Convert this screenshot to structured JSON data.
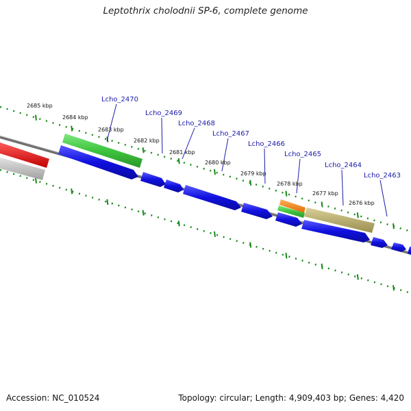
{
  "title": "Leptothrix cholodnii SP-6, complete genome",
  "accession": "Accession: NC_010524",
  "topology": "Topology: circular; Length: 4,909,403 bp; Genes: 4,420",
  "colors": {
    "backbone": "#6e6e6e",
    "cds": "#1010e0",
    "green_feature": "#3ec43e",
    "orange_feature": "#f07f10",
    "olive_feature": "#b8ac6a",
    "red_feature": "#f01010",
    "grey_feature": "#b8b8b8",
    "ticks": "#1a8a1a",
    "gene_label": "#1a1aa8"
  },
  "kbp_labels": [
    "2685 kbp",
    "2684 kbp",
    "2683 kbp",
    "2682 kbp",
    "2681 kbp",
    "2680 kbp",
    "2679 kbp",
    "2678 kbp",
    "2677 kbp",
    "2676 kbp"
  ],
  "gene_labels": [
    "Lcho_2470",
    "Lcho_2469",
    "Lcho_2468",
    "Lcho_2467",
    "Lcho_2466",
    "Lcho_2465",
    "Lcho_2464",
    "Lcho_2463"
  ]
}
